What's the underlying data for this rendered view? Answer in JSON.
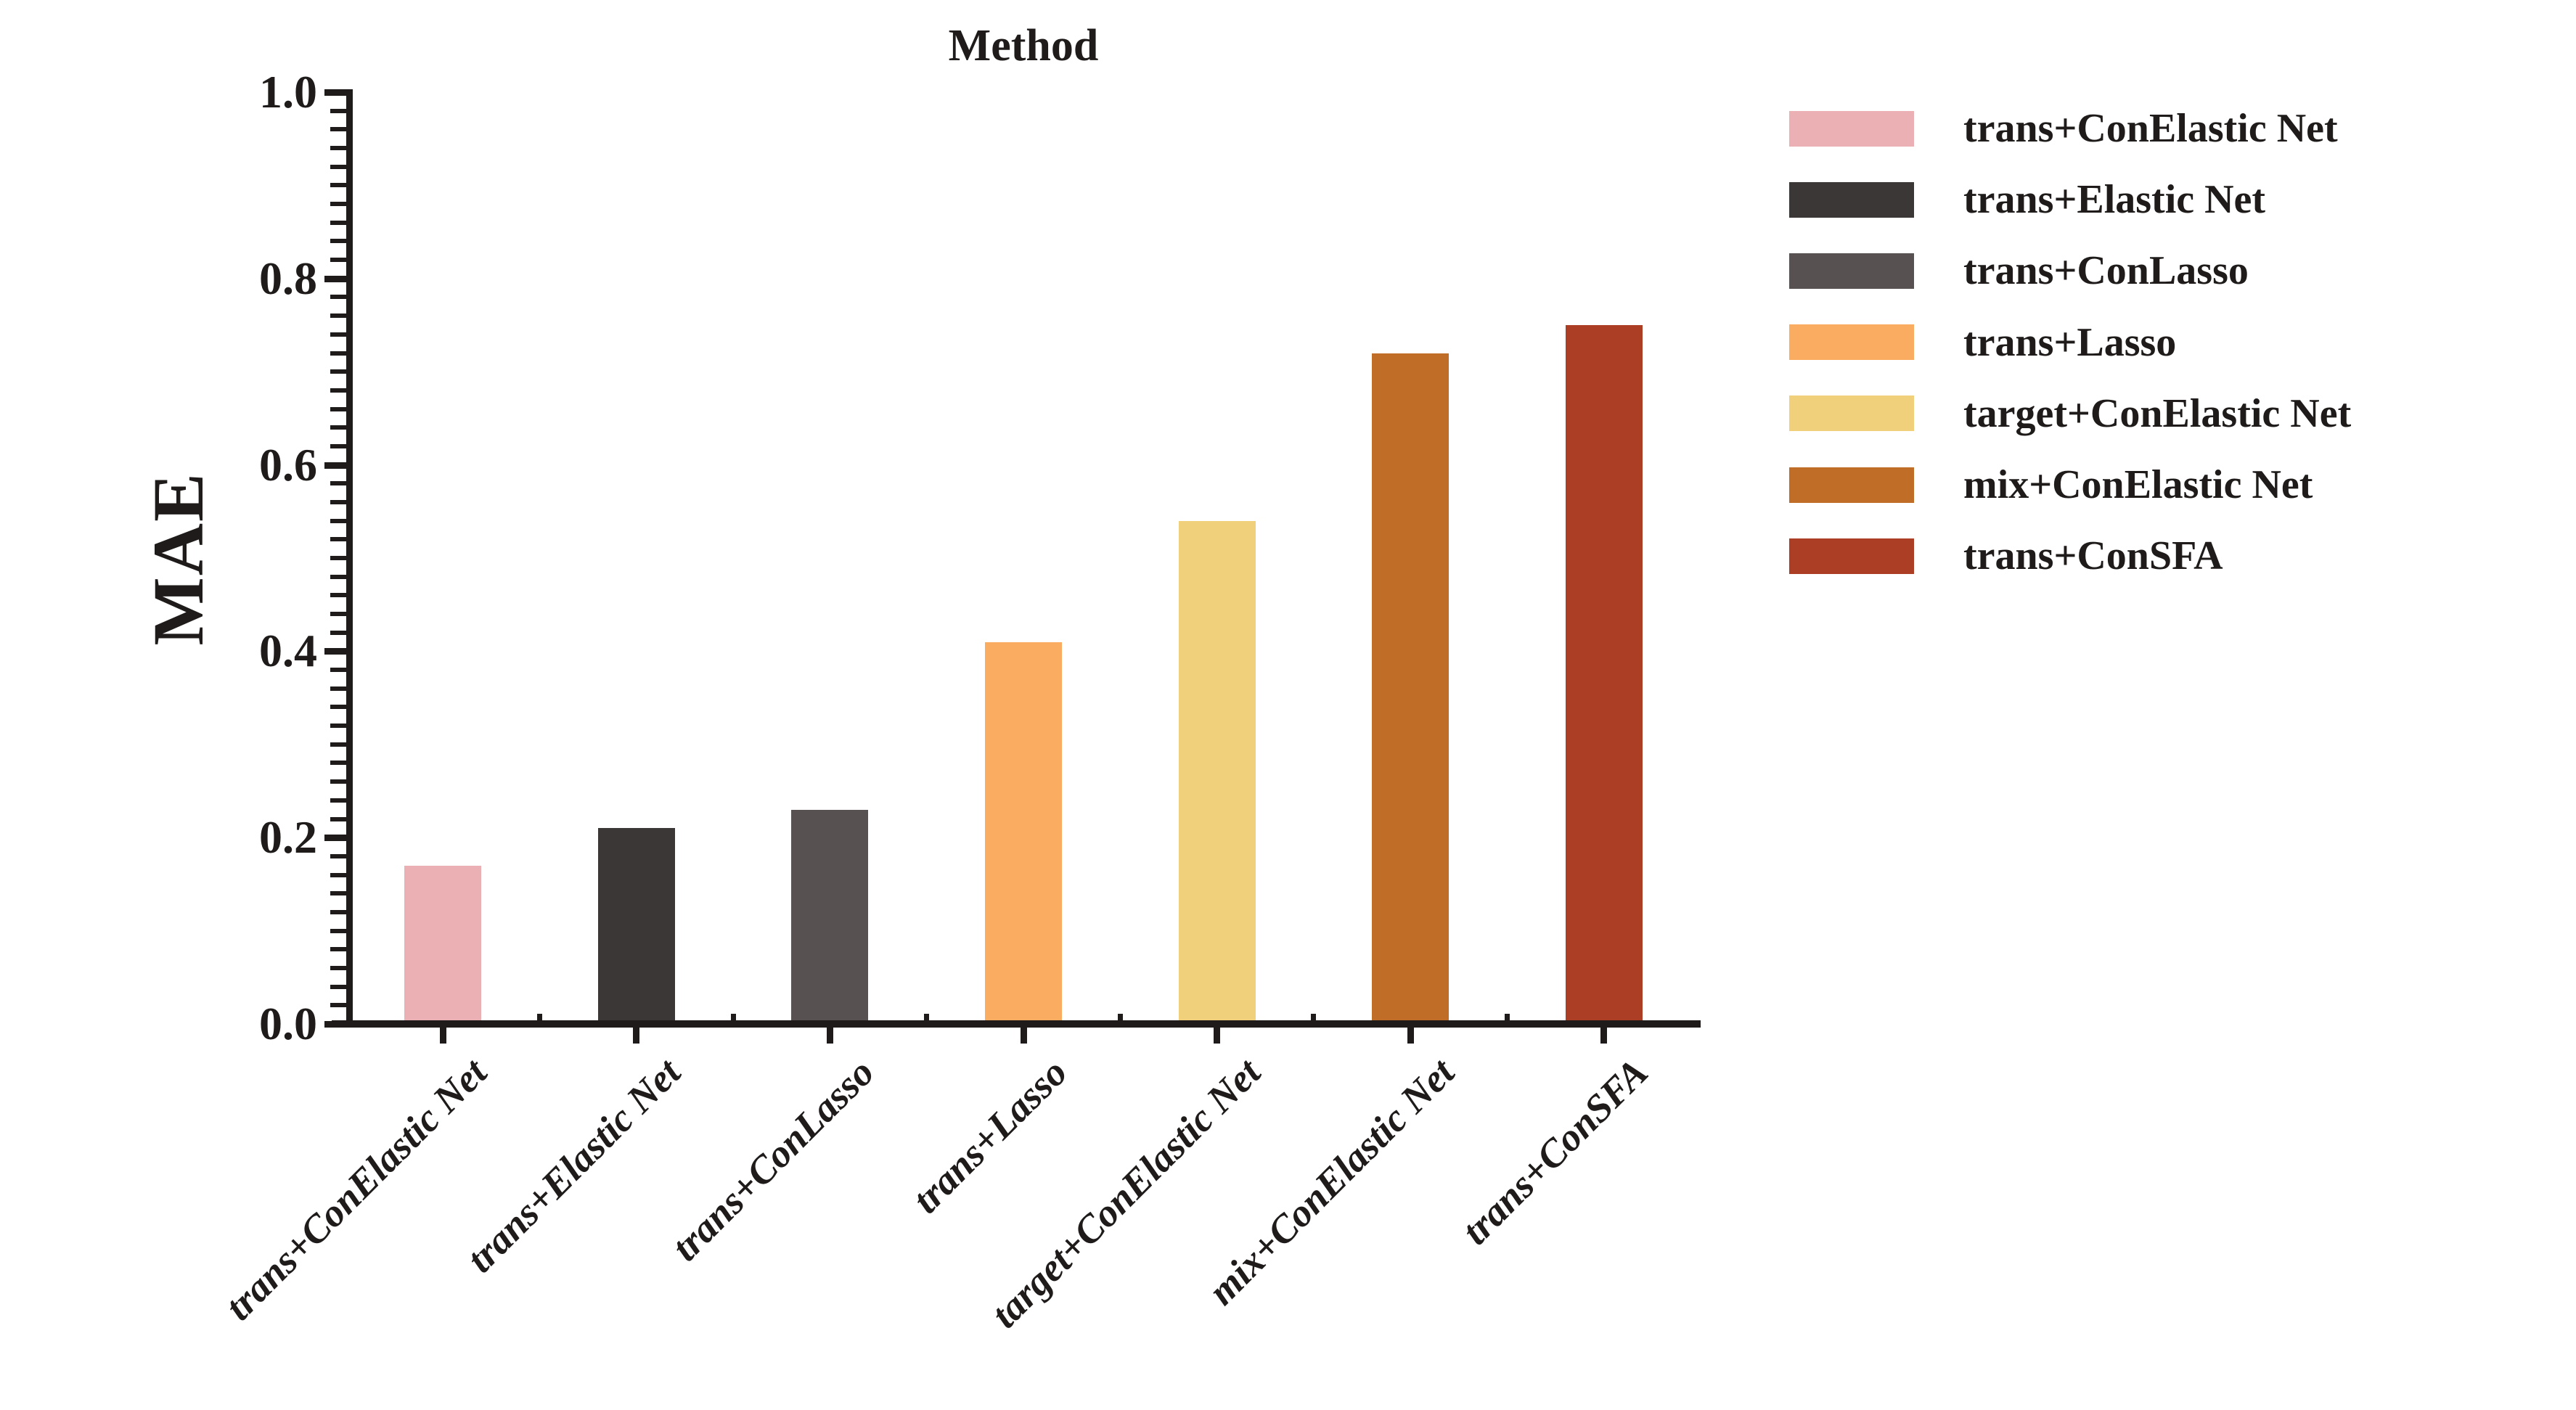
{
  "background": "#ffffff",
  "axis_color": "#1e1b1a",
  "chart_data": {
    "type": "bar",
    "title": "Method",
    "xlabel": "",
    "ylabel": "MAE",
    "categories": [
      "trans+ConElastic Net",
      "trans+Elastic Net",
      "trans+ConLasso",
      "trans+Lasso",
      "target+ConElastic Net",
      "mix+ConElastic Net",
      "trans+ConSFA"
    ],
    "values": [
      0.17,
      0.21,
      0.23,
      0.41,
      0.54,
      0.72,
      0.75
    ],
    "bar_colors": [
      "#EAB0B4",
      "#3B3736",
      "#575151",
      "#FAAD60",
      "#F1D07B",
      "#BF6D27",
      "#AB3E24"
    ],
    "ylim": [
      0.0,
      1.0
    ],
    "ytick_step": 0.2,
    "yminor_step": 0.02,
    "ytick_labels": [
      "0.0",
      "0.2",
      "0.4",
      "0.6",
      "0.8",
      "1.0"
    ],
    "grid": false,
    "legend": {
      "position": "right",
      "entries": [
        {
          "label": "trans+ConElastic Net",
          "color": "#EAB0B4"
        },
        {
          "label": "trans+Elastic Net",
          "color": "#3B3736"
        },
        {
          "label": "trans+ConLasso",
          "color": "#575151"
        },
        {
          "label": "trans+Lasso",
          "color": "#FAAD60"
        },
        {
          "label": "target+ConElastic Net",
          "color": "#F1D07B"
        },
        {
          "label": "mix+ConElastic Net",
          "color": "#BF6D27"
        },
        {
          "label": "trans+ConSFA",
          "color": "#AB3E24"
        }
      ]
    }
  }
}
